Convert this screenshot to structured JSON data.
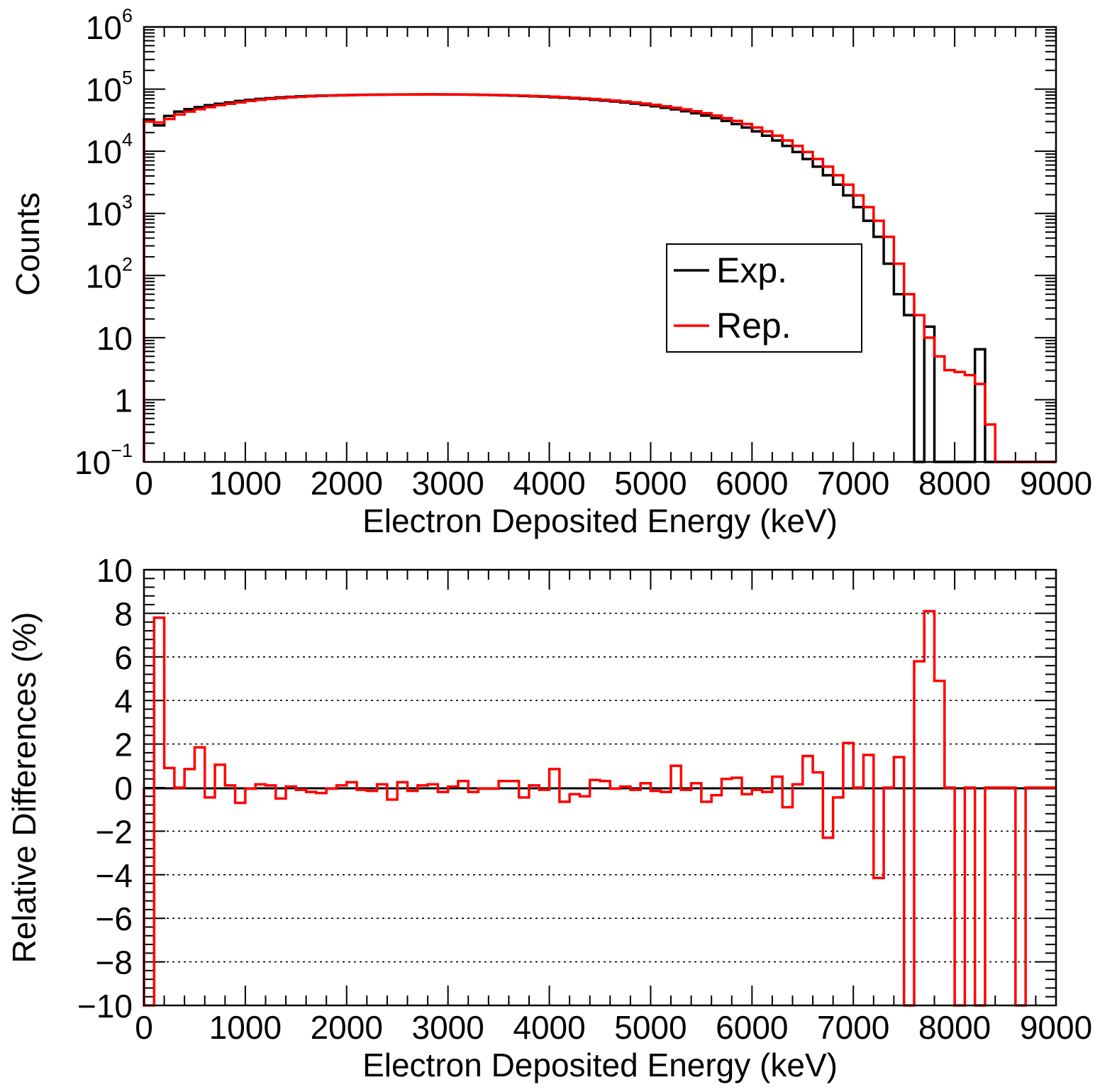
{
  "colors": {
    "exp": "#000000",
    "rep": "#ff0000",
    "axis": "#000000",
    "background": "#ffffff"
  },
  "chart_data": [
    {
      "type": "line",
      "subtype": "step-histogram",
      "panel": "top",
      "title": "",
      "xlabel": "Electron Deposited Energy (keV)",
      "ylabel": "Counts",
      "xlim": [
        0,
        9000
      ],
      "ylim": [
        0.1,
        1000000
      ],
      "yscale": "log",
      "grid": false,
      "bin_width": 100,
      "x_ticks": [
        "0",
        "1000",
        "2000",
        "3000",
        "4000",
        "5000",
        "6000",
        "7000",
        "8000",
        "9000"
      ],
      "y_ticks": [
        {
          "value": 0.1,
          "base": "10",
          "exp": "−1"
        },
        {
          "value": 1,
          "label": "1"
        },
        {
          "value": 10,
          "label": "10"
        },
        {
          "value": 100,
          "base": "10",
          "exp": "2"
        },
        {
          "value": 1000,
          "base": "10",
          "exp": "3"
        },
        {
          "value": 10000,
          "base": "10",
          "exp": "4"
        },
        {
          "value": 100000,
          "base": "10",
          "exp": "5"
        },
        {
          "value": 1000000,
          "base": "10",
          "exp": "6"
        }
      ],
      "legend": {
        "position": "center-right",
        "entries": [
          {
            "key": "exp",
            "label": "Exp.",
            "color": "#000000"
          },
          {
            "key": "rep",
            "label": "Rep.",
            "color": "#ff0000"
          }
        ]
      },
      "series": [
        {
          "name": "Exp.",
          "color": "#000000",
          "values": [
            32500,
            26000,
            37000,
            43500,
            47500,
            51200,
            55000,
            58000,
            61000,
            64500,
            67000,
            69500,
            71500,
            73500,
            75000,
            76500,
            77500,
            78500,
            79200,
            79800,
            80300,
            80800,
            81200,
            81500,
            81800,
            82000,
            82100,
            82200,
            82200,
            82100,
            81900,
            81600,
            81200,
            80700,
            80100,
            79300,
            78500,
            77600,
            76500,
            75400,
            74000,
            72600,
            71000,
            69300,
            67400,
            65400,
            63200,
            60900,
            58400,
            55800,
            53000,
            50100,
            47200,
            44000,
            40800,
            37500,
            34100,
            30800,
            27400,
            24100,
            20900,
            17800,
            14900,
            12200,
            9700,
            7500,
            5650,
            4100,
            2900,
            1950,
            1260,
            760,
            420,
            155,
            50,
            23,
            0.1,
            15,
            0.1,
            0.1,
            0.1,
            0.1,
            6.5,
            0.1,
            0.1,
            0.1,
            0.1,
            0.1,
            0.1,
            0.1
          ]
        },
        {
          "name": "Rep.",
          "color": "#ff0000",
          "values": [
            30000,
            29000,
            33000,
            39000,
            43500,
            47500,
            51200,
            55000,
            58000,
            61000,
            64500,
            67000,
            69500,
            71500,
            73500,
            75000,
            76500,
            77500,
            78500,
            79200,
            79800,
            80300,
            80800,
            81200,
            81500,
            81800,
            82000,
            82100,
            82200,
            82200,
            82100,
            81900,
            81600,
            81200,
            80700,
            80100,
            79300,
            78500,
            77600,
            76500,
            75400,
            74000,
            72600,
            71000,
            69300,
            67400,
            65400,
            63200,
            60900,
            58400,
            55800,
            53000,
            50100,
            47200,
            44000,
            40800,
            37500,
            34100,
            30800,
            27400,
            24100,
            20900,
            17800,
            14900,
            12200,
            9700,
            7500,
            5650,
            4100,
            2900,
            1950,
            1260,
            760,
            420,
            155,
            50,
            23,
            10,
            5,
            3,
            2.8,
            2.5,
            1.8,
            0.4,
            0.1,
            0.1,
            0.1,
            0.1,
            0.1,
            0.1
          ]
        }
      ]
    },
    {
      "type": "line",
      "subtype": "step-histogram",
      "panel": "bottom",
      "title": "",
      "xlabel": "Electron Deposited Energy (keV)",
      "ylabel": "Relative Differences (%)",
      "xlim": [
        0,
        9000
      ],
      "ylim": [
        -10,
        10
      ],
      "grid": true,
      "grid_axis": "y",
      "bin_width": 100,
      "x_ticks": [
        "0",
        "1000",
        "2000",
        "3000",
        "4000",
        "5000",
        "6000",
        "7000",
        "8000",
        "9000"
      ],
      "y_ticks": [
        "−10",
        "−8",
        "−6",
        "−4",
        "−2",
        "0",
        "2",
        "4",
        "6",
        "8",
        "10"
      ],
      "y_tick_values": [
        -10,
        -8,
        -6,
        -4,
        -2,
        0,
        2,
        4,
        6,
        8,
        10
      ],
      "series": [
        {
          "name": "Relative difference",
          "color": "#ff0000",
          "values": [
            -10,
            7.8,
            0.9,
            0,
            0.85,
            1.85,
            -0.45,
            1.05,
            0.1,
            -0.7,
            -0.05,
            0.15,
            0.1,
            -0.5,
            0.05,
            -0.1,
            -0.2,
            -0.25,
            -0.05,
            0.1,
            0.25,
            -0.1,
            -0.15,
            0.15,
            -0.55,
            0.25,
            -0.15,
            0.1,
            0.15,
            -0.2,
            0.05,
            0.3,
            -0.2,
            -0.05,
            -0.05,
            0.3,
            0.3,
            -0.45,
            0.1,
            -0.1,
            0.85,
            -0.65,
            -0.3,
            -0.4,
            0.35,
            0.3,
            -0.05,
            0.05,
            -0.1,
            0.2,
            -0.15,
            -0.2,
            1,
            -0.1,
            0.2,
            -0.65,
            -0.35,
            0.4,
            0.45,
            -0.3,
            -0.1,
            -0.2,
            0.5,
            -0.9,
            0.15,
            1.45,
            0.7,
            -2.3,
            -0.45,
            2.05,
            0,
            1.5,
            -4.15,
            0,
            1.4,
            -10,
            5.8,
            8.1,
            4.9,
            0,
            -10,
            0,
            -10,
            0,
            0,
            0,
            -10,
            0,
            0,
            0
          ]
        }
      ]
    }
  ]
}
